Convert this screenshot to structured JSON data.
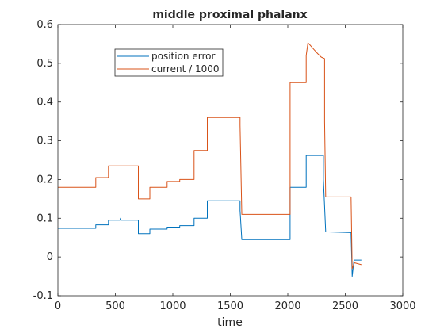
{
  "chart_data": {
    "type": "line",
    "title": "middle proximal phalanx",
    "xlabel": "time",
    "ylabel": "",
    "xlim": [
      0,
      3000
    ],
    "ylim": [
      -0.1,
      0.6
    ],
    "xticks": [
      0,
      500,
      1000,
      1500,
      2000,
      2500,
      3000
    ],
    "yticks": [
      -0.1,
      0,
      0.1,
      0.2,
      0.3,
      0.4,
      0.5,
      0.6
    ],
    "grid": false,
    "legend_position": "top-left",
    "series": [
      {
        "name": "position error",
        "color": "#0072bd",
        "points": [
          [
            0,
            0.074
          ],
          [
            330,
            0.074
          ],
          [
            330,
            0.083
          ],
          [
            440,
            0.083
          ],
          [
            440,
            0.095
          ],
          [
            540,
            0.095
          ],
          [
            545,
            0.1
          ],
          [
            548,
            0.095
          ],
          [
            700,
            0.095
          ],
          [
            700,
            0.06
          ],
          [
            800,
            0.06
          ],
          [
            800,
            0.072
          ],
          [
            950,
            0.072
          ],
          [
            950,
            0.077
          ],
          [
            1060,
            0.077
          ],
          [
            1060,
            0.081
          ],
          [
            1185,
            0.081
          ],
          [
            1185,
            0.1
          ],
          [
            1300,
            0.1
          ],
          [
            1300,
            0.145
          ],
          [
            1585,
            0.145
          ],
          [
            1585,
            0.12
          ],
          [
            1600,
            0.045
          ],
          [
            2020,
            0.045
          ],
          [
            2020,
            0.18
          ],
          [
            2160,
            0.18
          ],
          [
            2160,
            0.262
          ],
          [
            2310,
            0.262
          ],
          [
            2310,
            0.2
          ],
          [
            2330,
            0.065
          ],
          [
            2550,
            0.063
          ],
          [
            2560,
            -0.05
          ],
          [
            2575,
            -0.01
          ],
          [
            2580,
            -0.008
          ],
          [
            2640,
            -0.008
          ]
        ]
      },
      {
        "name": "current / 1000",
        "color": "#d95319",
        "points": [
          [
            0,
            0.18
          ],
          [
            330,
            0.18
          ],
          [
            330,
            0.205
          ],
          [
            440,
            0.205
          ],
          [
            440,
            0.235
          ],
          [
            700,
            0.235
          ],
          [
            700,
            0.15
          ],
          [
            800,
            0.15
          ],
          [
            800,
            0.18
          ],
          [
            950,
            0.18
          ],
          [
            950,
            0.195
          ],
          [
            1060,
            0.195
          ],
          [
            1060,
            0.2
          ],
          [
            1185,
            0.2
          ],
          [
            1185,
            0.275
          ],
          [
            1300,
            0.275
          ],
          [
            1300,
            0.36
          ],
          [
            1585,
            0.36
          ],
          [
            1585,
            0.34
          ],
          [
            1600,
            0.11
          ],
          [
            2020,
            0.11
          ],
          [
            2020,
            0.45
          ],
          [
            2160,
            0.45
          ],
          [
            2160,
            0.52
          ],
          [
            2175,
            0.553
          ],
          [
            2200,
            0.545
          ],
          [
            2230,
            0.535
          ],
          [
            2260,
            0.525
          ],
          [
            2290,
            0.516
          ],
          [
            2320,
            0.512
          ],
          [
            2320,
            0.35
          ],
          [
            2330,
            0.155
          ],
          [
            2550,
            0.155
          ],
          [
            2560,
            -0.03
          ],
          [
            2580,
            -0.015
          ],
          [
            2640,
            -0.02
          ]
        ]
      }
    ]
  }
}
